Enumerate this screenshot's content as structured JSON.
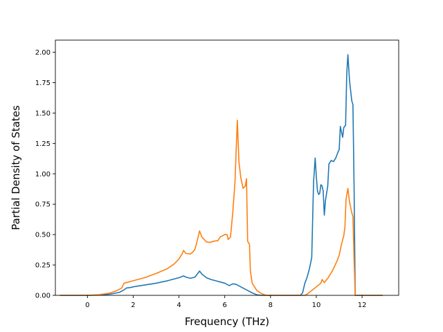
{
  "chart_data": {
    "type": "line",
    "title": "",
    "xlabel": "Frequency (THz)",
    "ylabel": "Partial Density of States",
    "xlim": [
      -1.4,
      13.6
    ],
    "ylim": [
      0,
      2.1
    ],
    "grid": false,
    "x_ticks": [
      0,
      2,
      4,
      6,
      8,
      10,
      12
    ],
    "y_ticks": [
      0.0,
      0.25,
      0.5,
      0.75,
      1.0,
      1.25,
      1.5,
      1.75,
      2.0
    ],
    "x_tick_labels": [
      "0",
      "2",
      "4",
      "6",
      "8",
      "10",
      "12"
    ],
    "y_tick_labels": [
      "0.00",
      "0.25",
      "0.50",
      "0.75",
      "1.00",
      "1.25",
      "1.50",
      "1.75",
      "2.00"
    ],
    "series": [
      {
        "color": "#1f77b4",
        "points": [
          [
            -1.2,
            0
          ],
          [
            0.0,
            0
          ],
          [
            0.5,
            0.002
          ],
          [
            1.0,
            0.01
          ],
          [
            1.4,
            0.025
          ],
          [
            1.6,
            0.045
          ],
          [
            1.7,
            0.06
          ],
          [
            1.9,
            0.065
          ],
          [
            2.0,
            0.07
          ],
          [
            2.5,
            0.085
          ],
          [
            3.0,
            0.1
          ],
          [
            3.5,
            0.12
          ],
          [
            4.0,
            0.145
          ],
          [
            4.2,
            0.16
          ],
          [
            4.3,
            0.15
          ],
          [
            4.5,
            0.14
          ],
          [
            4.7,
            0.15
          ],
          [
            4.8,
            0.175
          ],
          [
            4.9,
            0.2
          ],
          [
            5.0,
            0.175
          ],
          [
            5.2,
            0.145
          ],
          [
            5.4,
            0.13
          ],
          [
            5.6,
            0.12
          ],
          [
            5.8,
            0.11
          ],
          [
            6.0,
            0.1
          ],
          [
            6.1,
            0.09
          ],
          [
            6.2,
            0.08
          ],
          [
            6.35,
            0.095
          ],
          [
            6.5,
            0.09
          ],
          [
            6.6,
            0.08
          ],
          [
            6.8,
            0.06
          ],
          [
            7.0,
            0.04
          ],
          [
            7.2,
            0.02
          ],
          [
            7.4,
            0.005
          ],
          [
            7.6,
            0
          ],
          [
            9.3,
            0
          ],
          [
            9.4,
            0.02
          ],
          [
            9.5,
            0.1
          ],
          [
            9.6,
            0.15
          ],
          [
            9.7,
            0.22
          ],
          [
            9.8,
            0.31
          ],
          [
            9.88,
            0.93
          ],
          [
            9.95,
            1.13
          ],
          [
            10.0,
            0.98
          ],
          [
            10.05,
            0.86
          ],
          [
            10.1,
            0.83
          ],
          [
            10.15,
            0.84
          ],
          [
            10.2,
            0.91
          ],
          [
            10.25,
            0.9
          ],
          [
            10.3,
            0.86
          ],
          [
            10.35,
            0.66
          ],
          [
            10.4,
            0.78
          ],
          [
            10.5,
            0.9
          ],
          [
            10.55,
            1.08
          ],
          [
            10.65,
            1.11
          ],
          [
            10.75,
            1.1
          ],
          [
            10.85,
            1.13
          ],
          [
            10.95,
            1.18
          ],
          [
            11.0,
            1.2
          ],
          [
            11.05,
            1.39
          ],
          [
            11.15,
            1.3
          ],
          [
            11.2,
            1.38
          ],
          [
            11.28,
            1.4
          ],
          [
            11.33,
            1.82
          ],
          [
            11.38,
            1.98
          ],
          [
            11.45,
            1.77
          ],
          [
            11.55,
            1.6
          ],
          [
            11.6,
            1.57
          ],
          [
            11.65,
            0.9
          ],
          [
            11.7,
            0
          ],
          [
            12.9,
            0
          ]
        ]
      },
      {
        "color": "#ff7f0e",
        "points": [
          [
            -1.2,
            0
          ],
          [
            0.0,
            0
          ],
          [
            0.5,
            0.005
          ],
          [
            1.0,
            0.02
          ],
          [
            1.3,
            0.04
          ],
          [
            1.5,
            0.06
          ],
          [
            1.6,
            0.1
          ],
          [
            1.8,
            0.11
          ],
          [
            2.0,
            0.12
          ],
          [
            2.5,
            0.145
          ],
          [
            3.0,
            0.18
          ],
          [
            3.5,
            0.22
          ],
          [
            3.8,
            0.26
          ],
          [
            4.0,
            0.3
          ],
          [
            4.15,
            0.345
          ],
          [
            4.2,
            0.37
          ],
          [
            4.3,
            0.345
          ],
          [
            4.5,
            0.34
          ],
          [
            4.6,
            0.355
          ],
          [
            4.7,
            0.38
          ],
          [
            4.8,
            0.45
          ],
          [
            4.9,
            0.53
          ],
          [
            5.0,
            0.48
          ],
          [
            5.2,
            0.44
          ],
          [
            5.35,
            0.435
          ],
          [
            5.5,
            0.445
          ],
          [
            5.7,
            0.45
          ],
          [
            5.8,
            0.48
          ],
          [
            6.0,
            0.5
          ],
          [
            6.1,
            0.5
          ],
          [
            6.15,
            0.46
          ],
          [
            6.25,
            0.48
          ],
          [
            6.35,
            0.68
          ],
          [
            6.45,
            0.94
          ],
          [
            6.5,
            1.2
          ],
          [
            6.55,
            1.44
          ],
          [
            6.62,
            1.1
          ],
          [
            6.7,
            0.97
          ],
          [
            6.8,
            0.88
          ],
          [
            6.9,
            0.9
          ],
          [
            6.95,
            0.96
          ],
          [
            7.0,
            0.445
          ],
          [
            7.08,
            0.42
          ],
          [
            7.12,
            0.2
          ],
          [
            7.2,
            0.1
          ],
          [
            7.4,
            0.04
          ],
          [
            7.6,
            0.015
          ],
          [
            7.8,
            0
          ],
          [
            9.5,
            0
          ],
          [
            9.6,
            0.01
          ],
          [
            9.8,
            0.04
          ],
          [
            10.0,
            0.07
          ],
          [
            10.2,
            0.1
          ],
          [
            10.25,
            0.13
          ],
          [
            10.35,
            0.105
          ],
          [
            10.5,
            0.14
          ],
          [
            10.7,
            0.2
          ],
          [
            10.9,
            0.28
          ],
          [
            11.0,
            0.33
          ],
          [
            11.1,
            0.42
          ],
          [
            11.2,
            0.49
          ],
          [
            11.25,
            0.56
          ],
          [
            11.3,
            0.79
          ],
          [
            11.38,
            0.88
          ],
          [
            11.45,
            0.77
          ],
          [
            11.55,
            0.68
          ],
          [
            11.6,
            0.65
          ],
          [
            11.65,
            0.3
          ],
          [
            11.7,
            0
          ],
          [
            12.9,
            0
          ]
        ]
      }
    ]
  }
}
